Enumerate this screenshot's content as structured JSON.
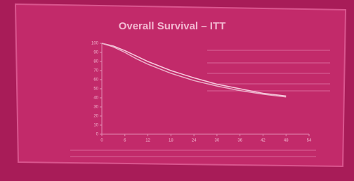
{
  "chart_data": {
    "type": "line",
    "title": "Overall Survival – ITT",
    "x": [
      0,
      3,
      6,
      9,
      12,
      18,
      24,
      30,
      36,
      42,
      48
    ],
    "series": [
      {
        "color": "#f6c8dc",
        "values": [
          100,
          97,
          92,
          86,
          80,
          70,
          62,
          55,
          50,
          45,
          42
        ]
      },
      {
        "color": "#eab0c9",
        "values": [
          100,
          96,
          90,
          83,
          77,
          67,
          59,
          53,
          48,
          44,
          41
        ]
      }
    ],
    "xlim": [
      0,
      54
    ],
    "xticks": [
      0,
      6,
      12,
      18,
      24,
      30,
      36,
      42,
      48,
      54
    ],
    "ylim": [
      0,
      100
    ],
    "yticks": [
      0,
      10,
      20,
      30,
      40,
      50,
      60,
      70,
      80,
      90,
      100
    ]
  }
}
